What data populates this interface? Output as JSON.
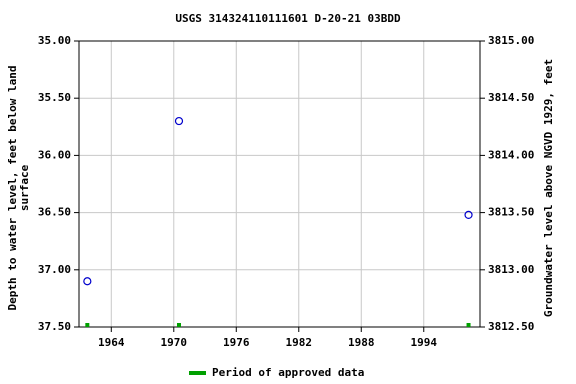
{
  "chart_data": {
    "type": "scatter",
    "title": "USGS 314324110111601 D-20-21 03BDD",
    "y_label": [
      "Depth to water level, feet below land",
      "surface"
    ],
    "y2_label": "Groundwater level above NGVD 1929, feet",
    "x": [
      1961.7,
      1970.5,
      1998.3
    ],
    "values": [
      37.1,
      35.7,
      36.52
    ],
    "color": "#0000cc",
    "approved": {
      "name": "Period of approved data",
      "color": "#00a000",
      "x": [
        1961.7,
        1970.5,
        1998.3
      ]
    },
    "xlim": [
      1960.9,
      1999.4
    ],
    "xticks": [
      1964,
      1970,
      1976,
      1982,
      1988,
      1994
    ],
    "ylim": [
      37.5,
      35
    ],
    "yticks": [
      {
        "value": 35,
        "label": "35.00"
      },
      {
        "value": 35.5,
        "label": "35.50"
      },
      {
        "value": 36,
        "label": "36.00"
      },
      {
        "value": 36.5,
        "label": "36.50"
      },
      {
        "value": 37,
        "label": "37.00"
      },
      {
        "value": 37.5,
        "label": "37.50"
      }
    ],
    "y2lim": [
      3812.5,
      3815
    ],
    "y2ticks": [
      {
        "value": 3815,
        "label": "3815.00"
      },
      {
        "value": 3814.5,
        "label": "3814.50"
      },
      {
        "value": 3814,
        "label": "3814.00"
      },
      {
        "value": 3813.5,
        "label": "3813.50"
      },
      {
        "value": 3813,
        "label": "3813.00"
      },
      {
        "value": 3812.5,
        "label": "3812.50"
      }
    ],
    "grid": true
  }
}
